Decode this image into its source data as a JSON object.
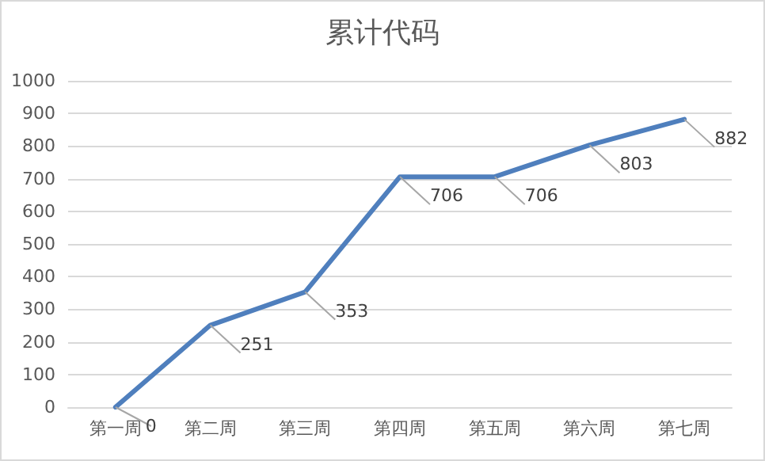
{
  "chart_data": {
    "type": "line",
    "title": "累计代码",
    "categories": [
      "第一周",
      "第二周",
      "第三周",
      "第四周",
      "第五周",
      "第六周",
      "第七周"
    ],
    "series": [
      {
        "color": "#4f7fbd",
        "values": [
          0,
          251,
          353,
          706,
          706,
          803,
          882
        ]
      }
    ],
    "ylim": [
      0,
      1000
    ],
    "yticks": [
      0,
      100,
      200,
      300,
      400,
      500,
      600,
      700,
      800,
      900,
      1000
    ],
    "grid": "y",
    "marker": "none",
    "line_style": "solid",
    "data_labels": true
  }
}
